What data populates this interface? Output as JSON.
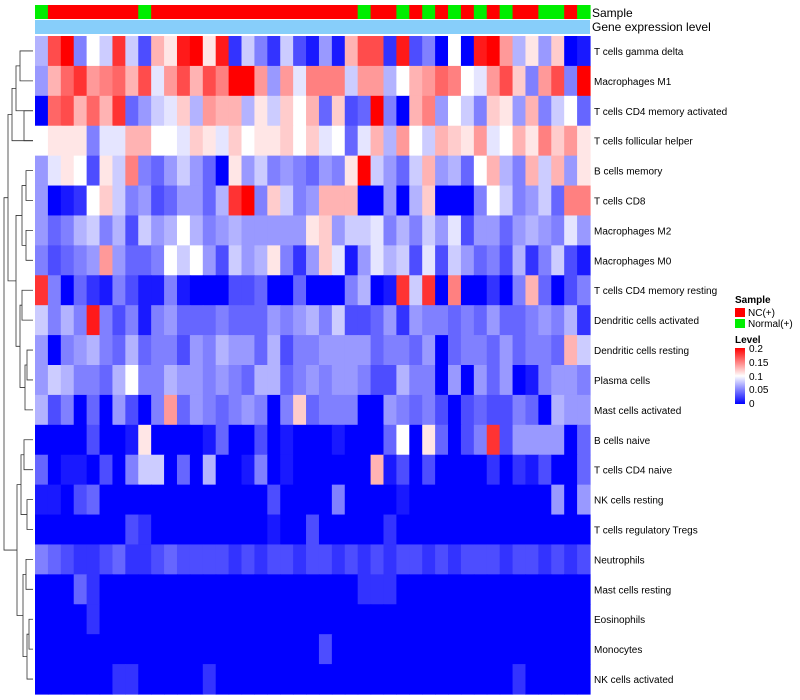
{
  "chart_data": {
    "type": "heatmap",
    "tracks": [
      "Sample",
      "Gene expression level"
    ],
    "rows": [
      "T cells gamma delta",
      "Macrophages M1",
      "T cells CD4 memory activated",
      "T cells follicular helper",
      "B cells memory",
      "T cells CD8",
      "Macrophages M2",
      "Macrophages M0",
      "T cells CD4 memory resting",
      "Dendritic cells activated",
      "Dendritic cells resting",
      "Plasma cells",
      "Mast cells activated",
      "B cells naive",
      "T cells CD4 naive",
      "NK cells resting",
      "T cells regulatory  Tregs",
      "Neutrophils",
      "Mast cells resting",
      "Eosinophils",
      "Monocytes",
      "NK cells activated"
    ],
    "sample_groups": [
      "N",
      "T",
      "T",
      "T",
      "T",
      "T",
      "T",
      "T",
      "N",
      "T",
      "T",
      "T",
      "T",
      "T",
      "T",
      "T",
      "T",
      "T",
      "T",
      "T",
      "T",
      "T",
      "T",
      "T",
      "T",
      "N",
      "T",
      "T",
      "N",
      "T",
      "N",
      "T",
      "N",
      "T",
      "N",
      "T",
      "N",
      "T",
      "T",
      "N",
      "N",
      "T",
      "N"
    ],
    "values": [
      [
        0.07,
        0.17,
        0.2,
        0.05,
        0.1,
        0.08,
        0.18,
        0.08,
        0.03,
        0.13,
        0.11,
        0.19,
        0.2,
        0.11,
        0.19,
        0.02,
        0.08,
        0.05,
        0.02,
        0.08,
        0.03,
        0.01,
        0.06,
        0.01,
        0.13,
        0.17,
        0.17,
        0.02,
        0.19,
        0.03,
        0.05,
        0.0,
        0.1,
        0.0,
        0.19,
        0.2,
        0.14,
        0.07,
        0.11,
        0.06,
        0.12,
        0.0,
        0.01
      ],
      [
        0.06,
        0.13,
        0.16,
        0.18,
        0.14,
        0.15,
        0.16,
        0.13,
        0.17,
        0.09,
        0.14,
        0.17,
        0.13,
        0.17,
        0.15,
        0.2,
        0.2,
        0.14,
        0.06,
        0.14,
        0.09,
        0.15,
        0.15,
        0.15,
        0.08,
        0.14,
        0.14,
        0.07,
        0.1,
        0.13,
        0.14,
        0.16,
        0.15,
        0.1,
        0.09,
        0.14,
        0.17,
        0.12,
        0.05,
        0.14,
        0.17,
        0.05,
        0.2
      ],
      [
        0.0,
        0.16,
        0.17,
        0.13,
        0.16,
        0.13,
        0.18,
        0.04,
        0.06,
        0.08,
        0.09,
        0.12,
        0.07,
        0.14,
        0.13,
        0.13,
        0.07,
        0.11,
        0.08,
        0.12,
        0.1,
        0.13,
        0.04,
        0.12,
        0.03,
        0.04,
        0.2,
        0.05,
        0.0,
        0.13,
        0.15,
        0.06,
        0.1,
        0.08,
        0.05,
        0.12,
        0.11,
        0.06,
        0.13,
        0.05,
        0.08,
        0.1,
        0.04
      ],
      [
        0.1,
        0.11,
        0.11,
        0.11,
        0.05,
        0.09,
        0.09,
        0.13,
        0.13,
        0.1,
        0.1,
        0.09,
        0.12,
        0.11,
        0.09,
        0.12,
        0.1,
        0.11,
        0.11,
        0.12,
        0.1,
        0.12,
        0.09,
        0.1,
        0.04,
        0.09,
        0.13,
        0.07,
        0.14,
        0.1,
        0.08,
        0.13,
        0.12,
        0.11,
        0.14,
        0.09,
        0.1,
        0.13,
        0.11,
        0.15,
        0.12,
        0.14,
        0.11
      ],
      [
        0.06,
        0.09,
        0.11,
        0.1,
        0.03,
        0.11,
        0.08,
        0.15,
        0.05,
        0.04,
        0.06,
        0.08,
        0.06,
        0.04,
        0.0,
        0.11,
        0.06,
        0.08,
        0.05,
        0.06,
        0.05,
        0.04,
        0.06,
        0.05,
        0.11,
        0.2,
        0.08,
        0.06,
        0.04,
        0.08,
        0.13,
        0.06,
        0.07,
        0.04,
        0.1,
        0.13,
        0.07,
        0.05,
        0.13,
        0.08,
        0.13,
        0.06,
        0.11
      ],
      [
        0.06,
        0.0,
        0.01,
        0.02,
        0.1,
        0.12,
        0.08,
        0.05,
        0.06,
        0.03,
        0.04,
        0.06,
        0.06,
        0.04,
        0.07,
        0.18,
        0.2,
        0.05,
        0.12,
        0.08,
        0.05,
        0.06,
        0.13,
        0.13,
        0.13,
        0.0,
        0.0,
        0.06,
        0.0,
        0.07,
        0.12,
        0.0,
        0.0,
        0.0,
        0.05,
        0.1,
        0.08,
        0.05,
        0.06,
        0.08,
        0.04,
        0.15,
        0.15
      ],
      [
        0.06,
        0.04,
        0.05,
        0.07,
        0.08,
        0.05,
        0.07,
        0.03,
        0.08,
        0.06,
        0.07,
        0.1,
        0.07,
        0.05,
        0.06,
        0.07,
        0.06,
        0.06,
        0.06,
        0.06,
        0.06,
        0.11,
        0.12,
        0.06,
        0.08,
        0.08,
        0.09,
        0.05,
        0.07,
        0.05,
        0.08,
        0.06,
        0.09,
        0.03,
        0.06,
        0.06,
        0.04,
        0.06,
        0.07,
        0.06,
        0.05,
        0.09,
        0.06
      ],
      [
        0.05,
        0.03,
        0.04,
        0.05,
        0.06,
        0.14,
        0.06,
        0.04,
        0.04,
        0.05,
        0.1,
        0.08,
        0.1,
        0.06,
        0.03,
        0.08,
        0.06,
        0.07,
        0.11,
        0.05,
        0.02,
        0.06,
        0.12,
        0.09,
        0.01,
        0.06,
        0.09,
        0.07,
        0.08,
        0.03,
        0.09,
        0.03,
        0.08,
        0.06,
        0.04,
        0.05,
        0.03,
        0.07,
        0.02,
        0.05,
        0.08,
        0.03,
        0.01
      ],
      [
        0.18,
        0.05,
        0.0,
        0.04,
        0.02,
        0.01,
        0.05,
        0.03,
        0.01,
        0.01,
        0.05,
        0.01,
        0.0,
        0.0,
        0.0,
        0.03,
        0.03,
        0.04,
        0.0,
        0.0,
        0.04,
        0.0,
        0.0,
        0.0,
        0.05,
        0.07,
        0.0,
        0.01,
        0.18,
        0.08,
        0.18,
        0.0,
        0.15,
        0.0,
        0.0,
        0.02,
        0.0,
        0.05,
        0.13,
        0.04,
        0.0,
        0.03,
        0.05
      ],
      [
        0.08,
        0.05,
        0.07,
        0.05,
        0.19,
        0.05,
        0.03,
        0.05,
        0.01,
        0.05,
        0.06,
        0.04,
        0.04,
        0.04,
        0.05,
        0.04,
        0.04,
        0.04,
        0.06,
        0.05,
        0.06,
        0.07,
        0.05,
        0.08,
        0.03,
        0.03,
        0.04,
        0.06,
        0.02,
        0.06,
        0.05,
        0.05,
        0.04,
        0.05,
        0.04,
        0.06,
        0.04,
        0.04,
        0.05,
        0.06,
        0.05,
        0.07,
        0.02
      ],
      [
        0.06,
        0.0,
        0.05,
        0.06,
        0.07,
        0.05,
        0.04,
        0.07,
        0.04,
        0.05,
        0.05,
        0.03,
        0.06,
        0.05,
        0.07,
        0.06,
        0.06,
        0.04,
        0.07,
        0.03,
        0.05,
        0.05,
        0.06,
        0.06,
        0.06,
        0.06,
        0.04,
        0.05,
        0.05,
        0.04,
        0.06,
        0.0,
        0.04,
        0.05,
        0.05,
        0.04,
        0.06,
        0.04,
        0.05,
        0.05,
        0.04,
        0.13,
        0.08
      ],
      [
        0.06,
        0.08,
        0.07,
        0.05,
        0.05,
        0.04,
        0.07,
        0.1,
        0.05,
        0.05,
        0.07,
        0.06,
        0.06,
        0.05,
        0.06,
        0.05,
        0.04,
        0.07,
        0.07,
        0.04,
        0.05,
        0.06,
        0.05,
        0.06,
        0.06,
        0.05,
        0.03,
        0.03,
        0.07,
        0.05,
        0.05,
        0.0,
        0.06,
        0.0,
        0.06,
        0.04,
        0.06,
        0.0,
        0.01,
        0.05,
        0.06,
        0.06,
        0.05
      ],
      [
        0.07,
        0.03,
        0.05,
        0.0,
        0.04,
        0.0,
        0.06,
        0.03,
        0.0,
        0.05,
        0.14,
        0.04,
        0.06,
        0.05,
        0.04,
        0.05,
        0.06,
        0.05,
        0.0,
        0.05,
        0.12,
        0.04,
        0.05,
        0.05,
        0.05,
        0.0,
        0.0,
        0.06,
        0.05,
        0.04,
        0.05,
        0.03,
        0.0,
        0.03,
        0.04,
        0.03,
        0.03,
        0.05,
        0.04,
        0.0,
        0.07,
        0.06,
        0.06
      ],
      [
        0.0,
        0.0,
        0.0,
        0.0,
        0.03,
        0.0,
        0.0,
        0.01,
        0.11,
        0.0,
        0.0,
        0.0,
        0.0,
        0.01,
        0.04,
        0.0,
        0.0,
        0.03,
        0.0,
        0.01,
        0.0,
        0.0,
        0.0,
        0.01,
        0.0,
        0.0,
        0.0,
        0.04,
        0.1,
        0.0,
        0.11,
        0.04,
        0.0,
        0.03,
        0.05,
        0.18,
        0.03,
        0.06,
        0.06,
        0.06,
        0.06,
        0.0,
        0.04
      ],
      [
        0.04,
        0.0,
        0.01,
        0.01,
        0.0,
        0.03,
        0.0,
        0.05,
        0.08,
        0.08,
        0.0,
        0.04,
        0.0,
        0.07,
        0.0,
        0.0,
        0.01,
        0.05,
        0.0,
        0.01,
        0.0,
        0.0,
        0.0,
        0.0,
        0.0,
        0.0,
        0.13,
        0.01,
        0.03,
        0.0,
        0.03,
        0.0,
        0.0,
        0.0,
        0.0,
        0.02,
        0.0,
        0.02,
        0.01,
        0.03,
        0.0,
        0.0,
        0.04
      ],
      [
        0.01,
        0.01,
        0.0,
        0.03,
        0.04,
        0.0,
        0.0,
        0.0,
        0.0,
        0.0,
        0.0,
        0.0,
        0.0,
        0.0,
        0.0,
        0.0,
        0.0,
        0.0,
        0.03,
        0.0,
        0.0,
        0.0,
        0.0,
        0.05,
        0.0,
        0.0,
        0.0,
        0.0,
        0.01,
        0.0,
        0.0,
        0.0,
        0.0,
        0.0,
        0.0,
        0.0,
        0.0,
        0.0,
        0.0,
        0.0,
        0.06,
        0.0,
        0.06
      ],
      [
        0.0,
        0.0,
        0.0,
        0.0,
        0.0,
        0.0,
        0.0,
        0.03,
        0.02,
        0.0,
        0.0,
        0.0,
        0.0,
        0.0,
        0.0,
        0.0,
        0.0,
        0.0,
        0.01,
        0.0,
        0.0,
        0.03,
        0.0,
        0.0,
        0.0,
        0.0,
        0.0,
        0.02,
        0.0,
        0.0,
        0.0,
        0.0,
        0.0,
        0.0,
        0.0,
        0.0,
        0.0,
        0.0,
        0.0,
        0.0,
        0.0,
        0.0,
        0.0
      ],
      [
        0.05,
        0.04,
        0.03,
        0.02,
        0.02,
        0.03,
        0.04,
        0.02,
        0.02,
        0.03,
        0.04,
        0.03,
        0.03,
        0.03,
        0.03,
        0.02,
        0.03,
        0.02,
        0.03,
        0.03,
        0.02,
        0.03,
        0.03,
        0.02,
        0.03,
        0.02,
        0.03,
        0.02,
        0.03,
        0.03,
        0.02,
        0.03,
        0.02,
        0.03,
        0.03,
        0.03,
        0.02,
        0.03,
        0.03,
        0.02,
        0.03,
        0.02,
        0.03
      ],
      [
        0.0,
        0.0,
        0.0,
        0.04,
        0.02,
        0.0,
        0.0,
        0.0,
        0.0,
        0.0,
        0.0,
        0.0,
        0.0,
        0.0,
        0.0,
        0.0,
        0.0,
        0.0,
        0.0,
        0.0,
        0.0,
        0.0,
        0.0,
        0.0,
        0.0,
        0.02,
        0.02,
        0.02,
        0.0,
        0.0,
        0.0,
        0.0,
        0.0,
        0.0,
        0.0,
        0.0,
        0.0,
        0.0,
        0.0,
        0.0,
        0.0,
        0.0,
        0.0
      ],
      [
        0.0,
        0.0,
        0.0,
        0.0,
        0.02,
        0.0,
        0.0,
        0.0,
        0.0,
        0.0,
        0.0,
        0.0,
        0.0,
        0.0,
        0.0,
        0.0,
        0.0,
        0.0,
        0.0,
        0.0,
        0.0,
        0.0,
        0.0,
        0.0,
        0.0,
        0.0,
        0.0,
        0.0,
        0.0,
        0.0,
        0.0,
        0.0,
        0.0,
        0.0,
        0.0,
        0.0,
        0.0,
        0.0,
        0.0,
        0.0,
        0.0,
        0.0,
        0.0
      ],
      [
        0.0,
        0.0,
        0.0,
        0.0,
        0.0,
        0.0,
        0.0,
        0.0,
        0.0,
        0.0,
        0.0,
        0.0,
        0.0,
        0.0,
        0.0,
        0.0,
        0.0,
        0.0,
        0.0,
        0.0,
        0.0,
        0.0,
        0.03,
        0.0,
        0.0,
        0.0,
        0.0,
        0.0,
        0.0,
        0.0,
        0.0,
        0.0,
        0.0,
        0.0,
        0.0,
        0.0,
        0.0,
        0.0,
        0.0,
        0.0,
        0.0,
        0.0,
        0.0
      ],
      [
        0.0,
        0.0,
        0.0,
        0.0,
        0.0,
        0.0,
        0.02,
        0.02,
        0.0,
        0.0,
        0.0,
        0.0,
        0.0,
        0.02,
        0.0,
        0.0,
        0.0,
        0.0,
        0.0,
        0.0,
        0.0,
        0.0,
        0.0,
        0.0,
        0.0,
        0.0,
        0.0,
        0.0,
        0.0,
        0.0,
        0.0,
        0.0,
        0.0,
        0.0,
        0.0,
        0.0,
        0.0,
        0.02,
        0.0,
        0.0,
        0.0,
        0.0,
        0.0
      ]
    ],
    "color_scale": {
      "min": 0,
      "mid": 0.1,
      "max": 0.2,
      "low": "#0000ff",
      "mid_color": "#ffffff",
      "high": "#ff0000"
    },
    "level_ticks": [
      "0.2",
      "0.15",
      "0.1",
      "0.05",
      "0"
    ],
    "legend": {
      "sample_title": "Sample",
      "sample_items": [
        {
          "label": "NC(+)",
          "color": "#ff0000"
        },
        {
          "label": "Normal(+)",
          "color": "#00ee00"
        }
      ],
      "level_title": "Level"
    },
    "group_colors": {
      "T": "#ff0000",
      "N": "#00ee00"
    },
    "expr_bar_color": "#87cefa"
  }
}
